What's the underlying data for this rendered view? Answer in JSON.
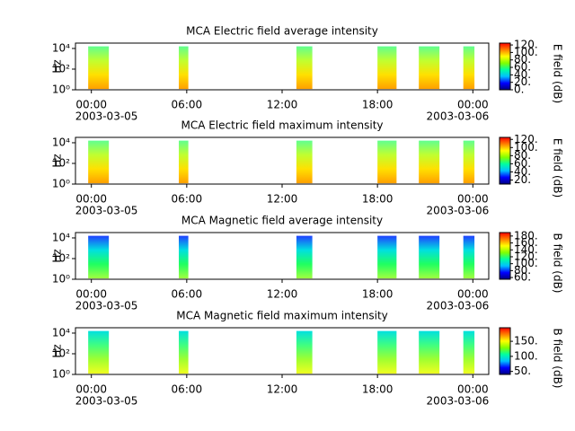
{
  "chart_data": [
    {
      "type": "spectrogram",
      "title": "MCA  Electric field average intensity",
      "ylabel": "Hz",
      "xlim": [
        -1,
        25
      ],
      "ylim": [
        1,
        33000
      ],
      "log_y": true,
      "xticks": [
        {
          "value": 0,
          "label": "00:00"
        },
        {
          "value": 6,
          "label": "06:00"
        },
        {
          "value": 12,
          "label": "12:00"
        },
        {
          "value": 18,
          "label": "18:00"
        },
        {
          "value": 24,
          "label": "00:00"
        }
      ],
      "dates": [
        "2003-03-05",
        "2003-03-06"
      ],
      "yticks": [
        {
          "value": 1,
          "label": "10⁰"
        },
        {
          "value": 100,
          "label": "10²"
        },
        {
          "value": 10000,
          "label": "10⁴"
        }
      ],
      "segments": [
        [
          -0.2,
          1.1
        ],
        [
          5.5,
          6.1
        ],
        [
          12.9,
          13.9
        ],
        [
          18.0,
          19.2
        ],
        [
          20.6,
          21.9
        ],
        [
          23.4,
          24.1
        ]
      ],
      "freq_range": [
        1.2,
        16000
      ],
      "fill_colors": [
        "#60ff90",
        "#c0ff30",
        "#ffe000",
        "#ffa000"
      ],
      "clabel": "E field (dB)",
      "clim": [
        0,
        125
      ],
      "cticks": [
        {
          "value": 0,
          "label": "0."
        },
        {
          "value": 20,
          "label": "20."
        },
        {
          "value": 40,
          "label": "40."
        },
        {
          "value": 60,
          "label": "60."
        },
        {
          "value": 80,
          "label": "80."
        },
        {
          "value": 100,
          "label": "100."
        },
        {
          "value": 120,
          "label": "120."
        }
      ],
      "colormap": [
        "#000080",
        "#0000ff",
        "#00c0ff",
        "#00ffa0",
        "#80ff00",
        "#ffff00",
        "#ff8000",
        "#ff0000"
      ]
    },
    {
      "type": "spectrogram",
      "title": "MCA  Electric field maximum intensity",
      "ylabel": "Hz",
      "xlim": [
        -1,
        25
      ],
      "ylim": [
        1,
        33000
      ],
      "log_y": true,
      "xticks": [
        {
          "value": 0,
          "label": "00:00"
        },
        {
          "value": 6,
          "label": "06:00"
        },
        {
          "value": 12,
          "label": "12:00"
        },
        {
          "value": 18,
          "label": "18:00"
        },
        {
          "value": 24,
          "label": "00:00"
        }
      ],
      "dates": [
        "2003-03-05",
        "2003-03-06"
      ],
      "yticks": [
        {
          "value": 1,
          "label": "10⁰"
        },
        {
          "value": 100,
          "label": "10²"
        },
        {
          "value": 10000,
          "label": "10⁴"
        }
      ],
      "segments": [
        [
          -0.2,
          1.1
        ],
        [
          5.5,
          6.1
        ],
        [
          12.9,
          13.9
        ],
        [
          18.0,
          19.2
        ],
        [
          20.6,
          21.9
        ],
        [
          23.4,
          24.1
        ]
      ],
      "freq_range": [
        1.2,
        16000
      ],
      "fill_colors": [
        "#60ff90",
        "#c0ff30",
        "#ffe000",
        "#ffa000"
      ],
      "clabel": "E field (dB)",
      "clim": [
        10,
        125
      ],
      "cticks": [
        {
          "value": 20,
          "label": "20."
        },
        {
          "value": 40,
          "label": "40."
        },
        {
          "value": 60,
          "label": "60."
        },
        {
          "value": 80,
          "label": "80."
        },
        {
          "value": 100,
          "label": "100."
        },
        {
          "value": 120,
          "label": "120."
        }
      ],
      "colormap": [
        "#000080",
        "#0000ff",
        "#00c0ff",
        "#00ffa0",
        "#80ff00",
        "#ffff00",
        "#ff8000",
        "#ff0000"
      ]
    },
    {
      "type": "spectrogram",
      "title": "MCA  Magnetic field average intensity",
      "ylabel": "Hz",
      "xlim": [
        -1,
        25
      ],
      "ylim": [
        1,
        33000
      ],
      "log_y": true,
      "xticks": [
        {
          "value": 0,
          "label": "00:00"
        },
        {
          "value": 6,
          "label": "06:00"
        },
        {
          "value": 12,
          "label": "12:00"
        },
        {
          "value": 18,
          "label": "18:00"
        },
        {
          "value": 24,
          "label": "00:00"
        }
      ],
      "dates": [
        "2003-03-05",
        "2003-03-06"
      ],
      "yticks": [
        {
          "value": 1,
          "label": "10⁰"
        },
        {
          "value": 100,
          "label": "10²"
        },
        {
          "value": 10000,
          "label": "10⁴"
        }
      ],
      "segments": [
        [
          -0.2,
          1.1
        ],
        [
          5.5,
          6.1
        ],
        [
          12.9,
          13.9
        ],
        [
          18.0,
          19.2
        ],
        [
          20.6,
          21.9
        ],
        [
          23.4,
          24.1
        ]
      ],
      "freq_range": [
        1.2,
        16000
      ],
      "fill_colors": [
        "#2040ff",
        "#00e0e0",
        "#20ff60",
        "#a0ff40"
      ],
      "clabel": "B field (dB)",
      "clim": [
        55,
        190
      ],
      "cticks": [
        {
          "value": 60,
          "label": "60."
        },
        {
          "value": 80,
          "label": "80."
        },
        {
          "value": 100,
          "label": "100."
        },
        {
          "value": 120,
          "label": "120."
        },
        {
          "value": 140,
          "label": "140."
        },
        {
          "value": 160,
          "label": "160."
        },
        {
          "value": 180,
          "label": "180."
        }
      ],
      "colormap": [
        "#000080",
        "#0000ff",
        "#00c0ff",
        "#00ffa0",
        "#80ff00",
        "#ffff00",
        "#ff8000",
        "#ff0000"
      ]
    },
    {
      "type": "spectrogram",
      "title": "MCA  Magnetic field maximum intensity",
      "ylabel": "Hz",
      "xlim": [
        -1,
        25
      ],
      "ylim": [
        1,
        33000
      ],
      "log_y": true,
      "xticks": [
        {
          "value": 0,
          "label": "00:00"
        },
        {
          "value": 6,
          "label": "06:00"
        },
        {
          "value": 12,
          "label": "12:00"
        },
        {
          "value": 18,
          "label": "18:00"
        },
        {
          "value": 24,
          "label": "00:00"
        }
      ],
      "dates": [
        "2003-03-05",
        "2003-03-06"
      ],
      "yticks": [
        {
          "value": 1,
          "label": "10⁰"
        },
        {
          "value": 100,
          "label": "10²"
        },
        {
          "value": 10000,
          "label": "10⁴"
        }
      ],
      "segments": [
        [
          -0.2,
          1.1
        ],
        [
          5.5,
          6.1
        ],
        [
          12.9,
          13.9
        ],
        [
          18.0,
          19.2
        ],
        [
          20.6,
          21.9
        ],
        [
          23.4,
          24.1
        ]
      ],
      "freq_range": [
        1.2,
        16000
      ],
      "fill_colors": [
        "#00e0e0",
        "#40ff80",
        "#a0ff30",
        "#f0ff20"
      ],
      "clabel": "B field (dB)",
      "clim": [
        40,
        195
      ],
      "cticks": [
        {
          "value": 50,
          "label": "50."
        },
        {
          "value": 100,
          "label": "100."
        },
        {
          "value": 150,
          "label": "150."
        }
      ],
      "colormap": [
        "#000080",
        "#0000ff",
        "#00c0ff",
        "#00ffa0",
        "#80ff00",
        "#ffff00",
        "#ff8000",
        "#ff0000"
      ]
    }
  ]
}
